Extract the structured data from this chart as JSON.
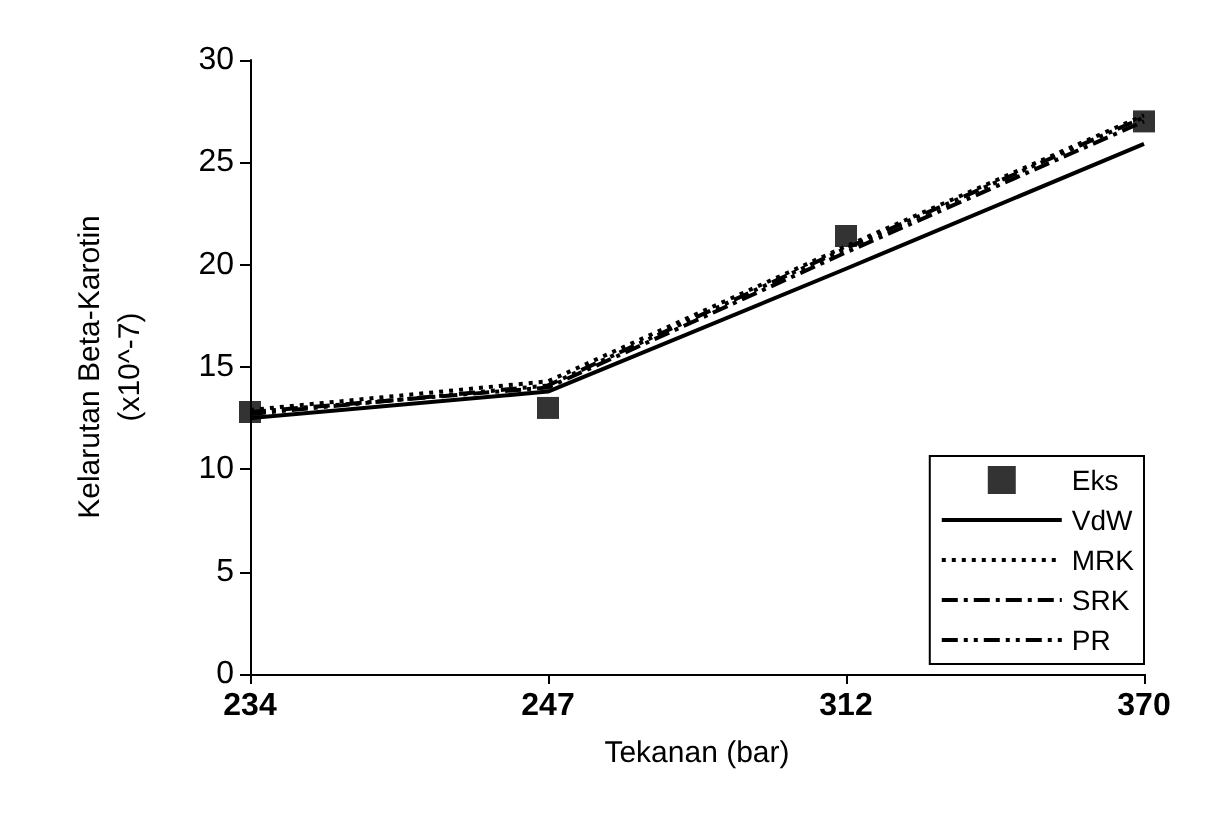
{
  "chart_data": {
    "type": "line",
    "xlabel": "Tekanan (bar)",
    "ylabel": "Kelarutan Beta-Karotin\n(x10^-7)",
    "categories": [
      "234",
      "247",
      "312",
      "370"
    ],
    "ylim": [
      0,
      30
    ],
    "yticks": [
      0,
      5,
      10,
      15,
      20,
      25,
      30
    ],
    "grid": false,
    "legend": "bottom right",
    "series": [
      {
        "name": "Eks",
        "type": "scatter",
        "marker": "square",
        "color": "#000000",
        "values": [
          12.8,
          13.0,
          21.4,
          27.0
        ]
      },
      {
        "name": "VdW",
        "color": "#000000",
        "line_style": "solid",
        "values": [
          12.5,
          13.8,
          19.8,
          25.9
        ]
      },
      {
        "name": "MRK",
        "color": "#000000",
        "line_style": "dotted",
        "values": [
          12.9,
          14.3,
          20.9,
          27.3
        ]
      },
      {
        "name": "SRK",
        "color": "#000000",
        "line_style": "dashdot",
        "values": [
          12.8,
          14.0,
          20.6,
          27.0
        ]
      },
      {
        "name": "PR",
        "color": "#000000",
        "line_style": "dashdotdot",
        "values": [
          12.7,
          14.1,
          20.8,
          27.2
        ]
      }
    ]
  }
}
